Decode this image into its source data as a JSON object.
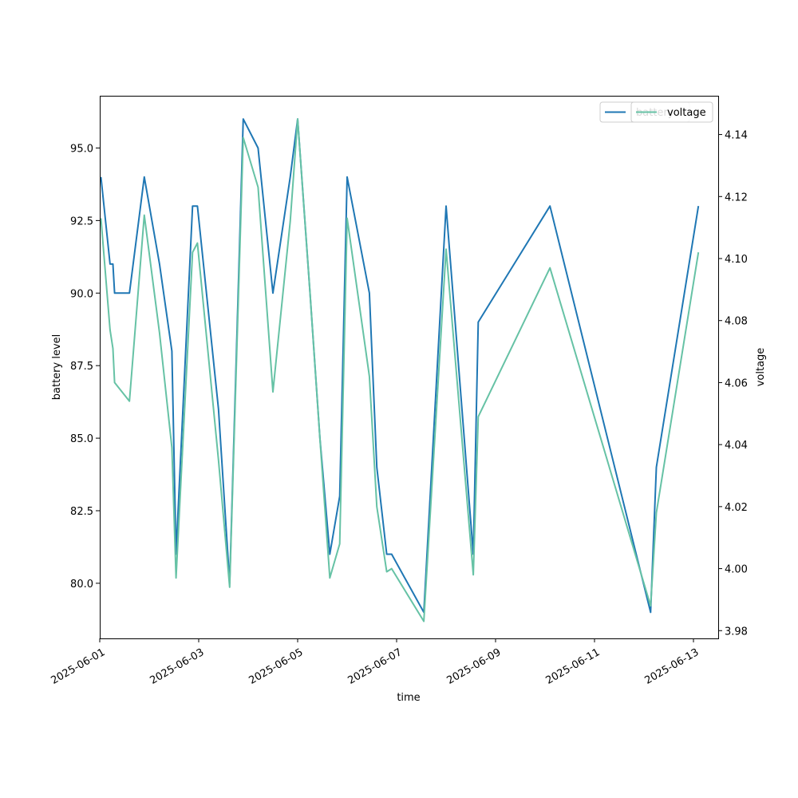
{
  "chart_data": {
    "type": "line",
    "title": "",
    "xlabel": "time",
    "ylabel": "battery level",
    "y2label": "voltage",
    "xlim": [
      "2025-06-01T00:00",
      "2025-06-13T12:00"
    ],
    "ylim": [
      78.1,
      96.8
    ],
    "y2lim": [
      3.9775,
      4.1525
    ],
    "x_ticks": [
      "2025-06-01",
      "2025-06-03",
      "2025-06-05",
      "2025-06-07",
      "2025-06-09",
      "2025-06-11",
      "2025-06-13"
    ],
    "y_ticks": [
      "80.0",
      "82.5",
      "85.0",
      "87.5",
      "90.0",
      "92.5",
      "95.0"
    ],
    "y_tick_values": [
      80.0,
      82.5,
      85.0,
      87.5,
      90.0,
      92.5,
      95.0
    ],
    "y2_ticks": [
      "3.98",
      "4.00",
      "4.02",
      "4.04",
      "4.06",
      "4.08",
      "4.10",
      "4.12",
      "4.14"
    ],
    "y2_tick_values": [
      3.98,
      4.0,
      4.02,
      4.04,
      4.06,
      4.08,
      4.1,
      4.12,
      4.14
    ],
    "grid": false,
    "legend_position": "top-right",
    "series": [
      {
        "name": "battery",
        "axis": "left",
        "color": "#1f77b4",
        "points": [
          [
            "2025-06-01T00:36",
            94
          ],
          [
            "2025-06-01T05:00",
            91
          ],
          [
            "2025-06-01T06:24",
            91
          ],
          [
            "2025-06-01T07:12",
            90
          ],
          [
            "2025-06-01T14:24",
            90
          ],
          [
            "2025-06-01T21:36",
            94
          ],
          [
            "2025-06-02T05:00",
            91
          ],
          [
            "2025-06-02T11:00",
            88
          ],
          [
            "2025-06-02T13:00",
            81
          ],
          [
            "2025-06-02T21:00",
            93
          ],
          [
            "2025-06-02T23:24",
            93
          ],
          [
            "2025-06-03T09:36",
            86
          ],
          [
            "2025-06-03T15:00",
            80
          ],
          [
            "2025-06-03T21:36",
            96
          ],
          [
            "2025-06-04T04:48",
            95
          ],
          [
            "2025-06-04T12:00",
            90
          ],
          [
            "2025-06-04T20:24",
            94
          ],
          [
            "2025-06-05T00:00",
            96
          ],
          [
            "2025-06-05T06:00",
            90
          ],
          [
            "2025-06-05T10:48",
            85
          ],
          [
            "2025-06-05T15:36",
            81
          ],
          [
            "2025-06-05T20:24",
            83
          ],
          [
            "2025-06-06T00:00",
            94
          ],
          [
            "2025-06-06T10:48",
            90
          ],
          [
            "2025-06-06T14:24",
            84
          ],
          [
            "2025-06-06T19:12",
            81
          ],
          [
            "2025-06-06T21:36",
            81
          ],
          [
            "2025-06-07T13:12",
            79
          ],
          [
            "2025-06-08T00:00",
            93
          ],
          [
            "2025-06-08T13:12",
            81
          ],
          [
            "2025-06-08T15:36",
            89
          ],
          [
            "2025-06-10T02:24",
            93
          ],
          [
            "2025-06-12T03:12",
            79
          ],
          [
            "2025-06-12T06:00",
            84
          ],
          [
            "2025-06-13T02:24",
            93
          ]
        ]
      },
      {
        "name": "voltage",
        "axis": "right",
        "color": "#66c2a5",
        "points": [
          [
            "2025-06-01T00:36",
            4.113
          ],
          [
            "2025-06-01T05:00",
            4.077
          ],
          [
            "2025-06-01T06:24",
            4.071
          ],
          [
            "2025-06-01T07:12",
            4.06
          ],
          [
            "2025-06-01T14:24",
            4.054
          ],
          [
            "2025-06-01T21:36",
            4.114
          ],
          [
            "2025-06-02T05:00",
            4.076
          ],
          [
            "2025-06-02T11:00",
            4.039
          ],
          [
            "2025-06-02T13:00",
            3.997
          ],
          [
            "2025-06-02T21:00",
            4.102
          ],
          [
            "2025-06-02T23:24",
            4.105
          ],
          [
            "2025-06-03T09:36",
            4.035
          ],
          [
            "2025-06-03T15:00",
            3.994
          ],
          [
            "2025-06-03T21:36",
            4.139
          ],
          [
            "2025-06-04T04:48",
            4.123
          ],
          [
            "2025-06-04T12:00",
            4.057
          ],
          [
            "2025-06-04T20:24",
            4.112
          ],
          [
            "2025-06-05T00:00",
            4.145
          ],
          [
            "2025-06-05T06:00",
            4.089
          ],
          [
            "2025-06-05T10:48",
            4.042
          ],
          [
            "2025-06-05T15:36",
            3.997
          ],
          [
            "2025-06-05T20:24",
            4.008
          ],
          [
            "2025-06-06T00:00",
            4.113
          ],
          [
            "2025-06-06T10:48",
            4.062
          ],
          [
            "2025-06-06T14:24",
            4.02
          ],
          [
            "2025-06-06T19:12",
            3.999
          ],
          [
            "2025-06-06T21:36",
            4.0
          ],
          [
            "2025-06-07T13:12",
            3.983
          ],
          [
            "2025-06-08T00:00",
            4.103
          ],
          [
            "2025-06-08T13:12",
            3.998
          ],
          [
            "2025-06-08T15:36",
            4.049
          ],
          [
            "2025-06-10T02:24",
            4.097
          ],
          [
            "2025-06-12T03:12",
            3.988
          ],
          [
            "2025-06-12T06:00",
            4.018
          ],
          [
            "2025-06-13T02:24",
            4.102
          ]
        ]
      }
    ]
  }
}
